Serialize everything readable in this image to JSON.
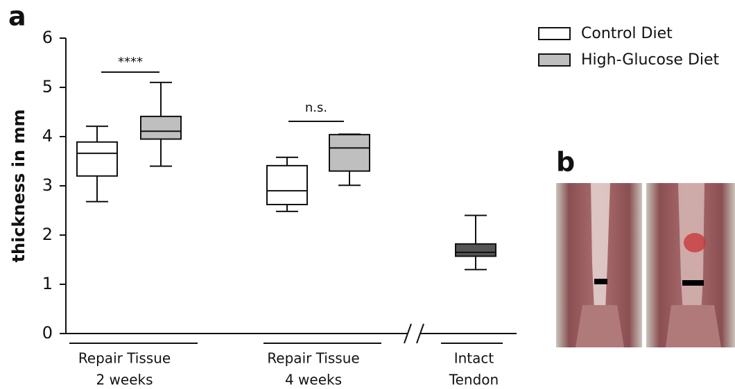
{
  "panel_a": "a",
  "panel_b": "b",
  "chart_data": {
    "type": "box",
    "ylabel": "thickness in mm",
    "ylim": [
      0,
      6
    ],
    "yticks": [
      0,
      1,
      2,
      3,
      4,
      5,
      6
    ],
    "categories": [
      [
        "Repair Tissue",
        "2 weeks"
      ],
      [
        "Repair Tissue",
        "4 weeks"
      ],
      [
        "Intact",
        "Tendon"
      ]
    ],
    "legend": [
      {
        "label": "Control Diet",
        "color": "#ffffff"
      },
      {
        "label": "High-Glucose Diet",
        "color": "#bfbfbf"
      }
    ],
    "boxes": [
      {
        "color": "#ffffff",
        "min": 2.68,
        "q1": 3.2,
        "median": 3.66,
        "q3": 3.89,
        "max": 4.21
      },
      {
        "color": "#bfbfbf",
        "min": 3.4,
        "q1": 3.95,
        "median": 4.11,
        "q3": 4.41,
        "max": 5.1
      },
      {
        "color": "#ffffff",
        "min": 2.48,
        "q1": 2.62,
        "median": 2.9,
        "q3": 3.41,
        "max": 3.58
      },
      {
        "color": "#bfbfbf",
        "min": 3.01,
        "q1": 3.3,
        "median": 3.77,
        "q3": 4.04,
        "max": 4.05
      },
      {
        "color": "#555555",
        "min": 1.3,
        "q1": 1.57,
        "median": 1.65,
        "q3": 1.82,
        "max": 2.4
      }
    ],
    "annotations": [
      "****",
      "n.s."
    ]
  }
}
